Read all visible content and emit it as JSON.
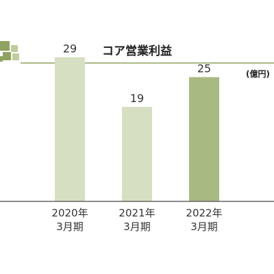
{
  "chart_data": {
    "type": "bar",
    "title": "コア営業利益",
    "unit": "(億円)",
    "categories": [
      [
        "2020年",
        "3月期"
      ],
      [
        "2021年",
        "3月期"
      ],
      [
        "2022年",
        "3月期"
      ]
    ],
    "values": [
      29,
      19,
      25
    ],
    "highlight_index": 2,
    "ylim": [
      0,
      35
    ],
    "colors": {
      "bar": "#d6dfc2",
      "bar_highlight": "#a9b982",
      "title_accent": "#8ea35f",
      "title_accent_light": "#bfcc9b",
      "axis": "#666666"
    }
  }
}
